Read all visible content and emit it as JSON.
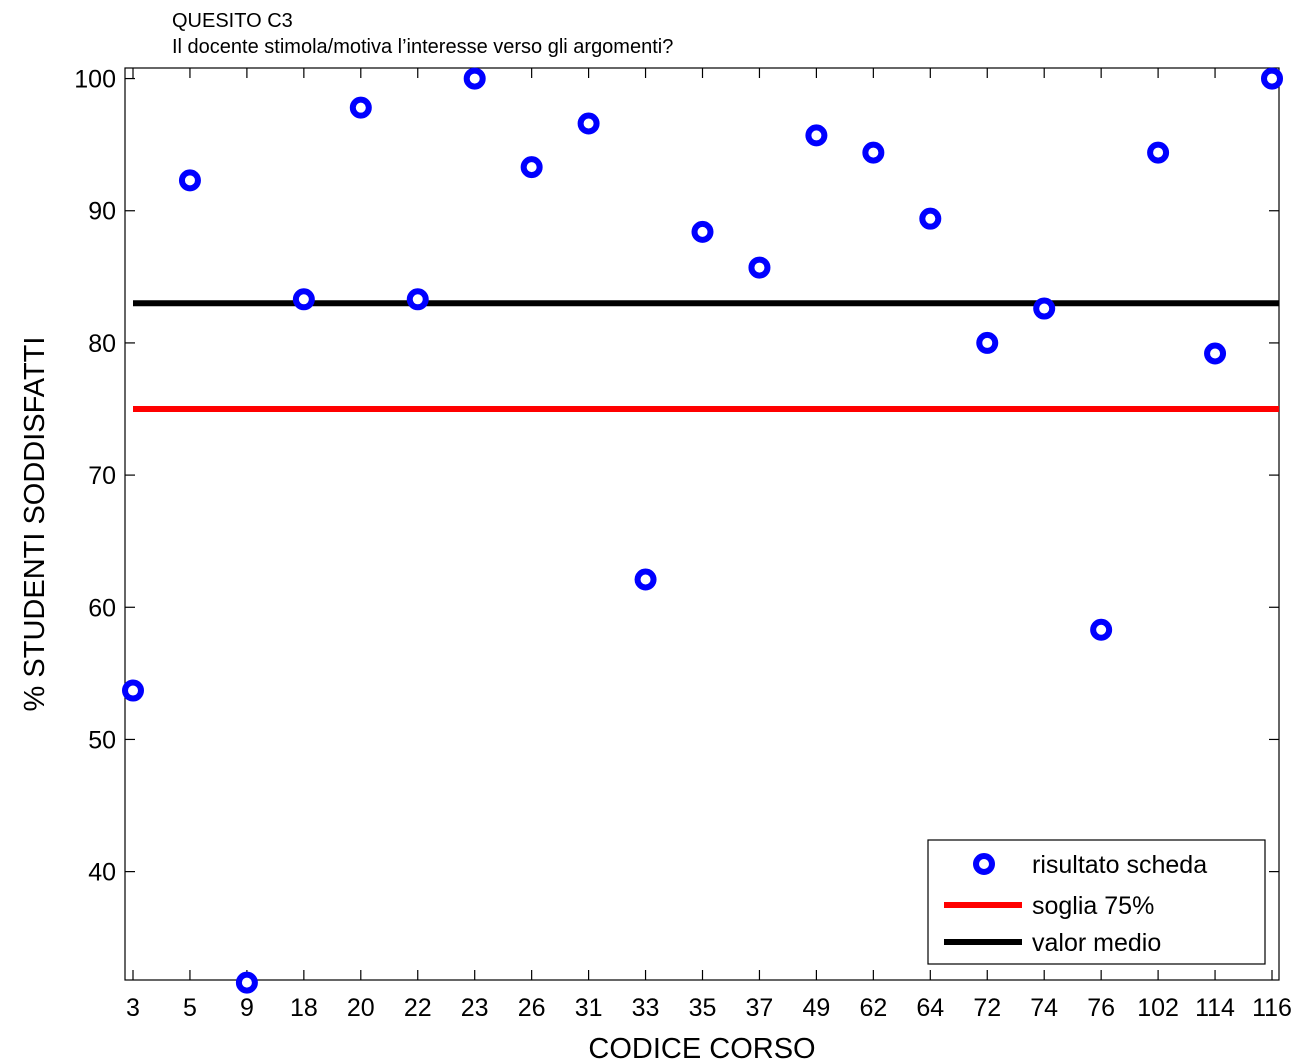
{
  "chart_data": {
    "type": "scatter",
    "title": "QUESITO C3",
    "subtitle": "Il docente stimola/motiva l’interesse verso gli argomenti?",
    "xlabel": "CODICE CORSO",
    "ylabel": "% STUDENTI SODDISFATTI",
    "categories": [
      "3",
      "5",
      "9",
      "18",
      "20",
      "22",
      "23",
      "26",
      "31",
      "33",
      "35",
      "37",
      "49",
      "62",
      "64",
      "72",
      "74",
      "76",
      "102",
      "114",
      "116"
    ],
    "series": [
      {
        "name": "risultato scheda",
        "marker": "circle",
        "color": "#0000ff",
        "values": [
          53.7,
          92.3,
          31.6,
          83.3,
          97.8,
          83.3,
          100,
          93.3,
          96.6,
          62.1,
          88.4,
          85.7,
          95.7,
          94.4,
          89.4,
          80.0,
          82.6,
          58.3,
          94.4,
          79.2,
          100
        ]
      }
    ],
    "reference_lines": [
      {
        "name": "soglia 75%",
        "value": 75,
        "color": "#ff0000"
      },
      {
        "name": "valor medio",
        "value": 83,
        "color": "#000000"
      }
    ],
    "ylim": [
      31.8,
      100.8
    ],
    "yticks": [
      "40",
      "50",
      "60",
      "70",
      "80",
      "90",
      "100"
    ],
    "grid": false,
    "legend_position": "bottom-right"
  }
}
